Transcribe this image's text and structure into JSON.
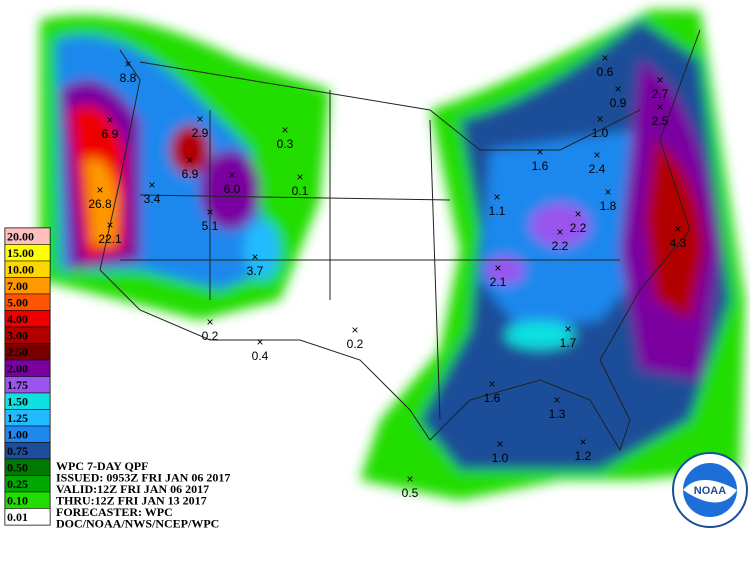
{
  "legend": [
    {
      "label": "20.00",
      "color": "#ffbfbf"
    },
    {
      "label": "15.00",
      "color": "#ffff00"
    },
    {
      "label": "10.00",
      "color": "#ffd700"
    },
    {
      "label": "7.00",
      "color": "#ff9900"
    },
    {
      "label": "5.00",
      "color": "#ff5500"
    },
    {
      "label": "4.00",
      "color": "#ee0000"
    },
    {
      "label": "3.00",
      "color": "#b20000"
    },
    {
      "label": "2.50",
      "color": "#7a0000"
    },
    {
      "label": "2.00",
      "color": "#7a00a0"
    },
    {
      "label": "1.75",
      "color": "#9955ee"
    },
    {
      "label": "1.50",
      "color": "#11e0e0"
    },
    {
      "label": "1.25",
      "color": "#22bbff"
    },
    {
      "label": "1.00",
      "color": "#1e88ee"
    },
    {
      "label": "0.75",
      "color": "#1c4e99"
    },
    {
      "label": "0.50",
      "color": "#007a00"
    },
    {
      "label": "0.25",
      "color": "#00a800"
    },
    {
      "label": "0.10",
      "color": "#22dd00"
    },
    {
      "label": "0.01",
      "color": "#ffffff"
    }
  ],
  "info": [
    "WPC 7-DAY QPF",
    "ISSUED: 0953Z FRI JAN 06 2017",
    "VALID:12Z FRI JAN 06 2017",
    "THRU:12Z FRI JAN 13 2017",
    "FORECASTER: WPC",
    "DOC/NOAA/NWS/NCEP/WPC"
  ],
  "points": [
    "8.8",
    "6.9",
    "2.9",
    "0.3",
    "6.9",
    "6.0",
    "0.1",
    "3.4",
    "26.8",
    "22.1",
    "5.1",
    "3.7",
    "0.2",
    "0.4",
    "0.2",
    "0.6",
    "0.9",
    "2.7",
    "2.5",
    "1.0",
    "1.6",
    "2.4",
    "1.8",
    "1.1",
    "2.2",
    "2.2",
    "4.3",
    "2.1",
    "1.7",
    "1.6",
    "1.3",
    "1.0",
    "1.2",
    "0.5"
  ],
  "logo": "NOAA"
}
